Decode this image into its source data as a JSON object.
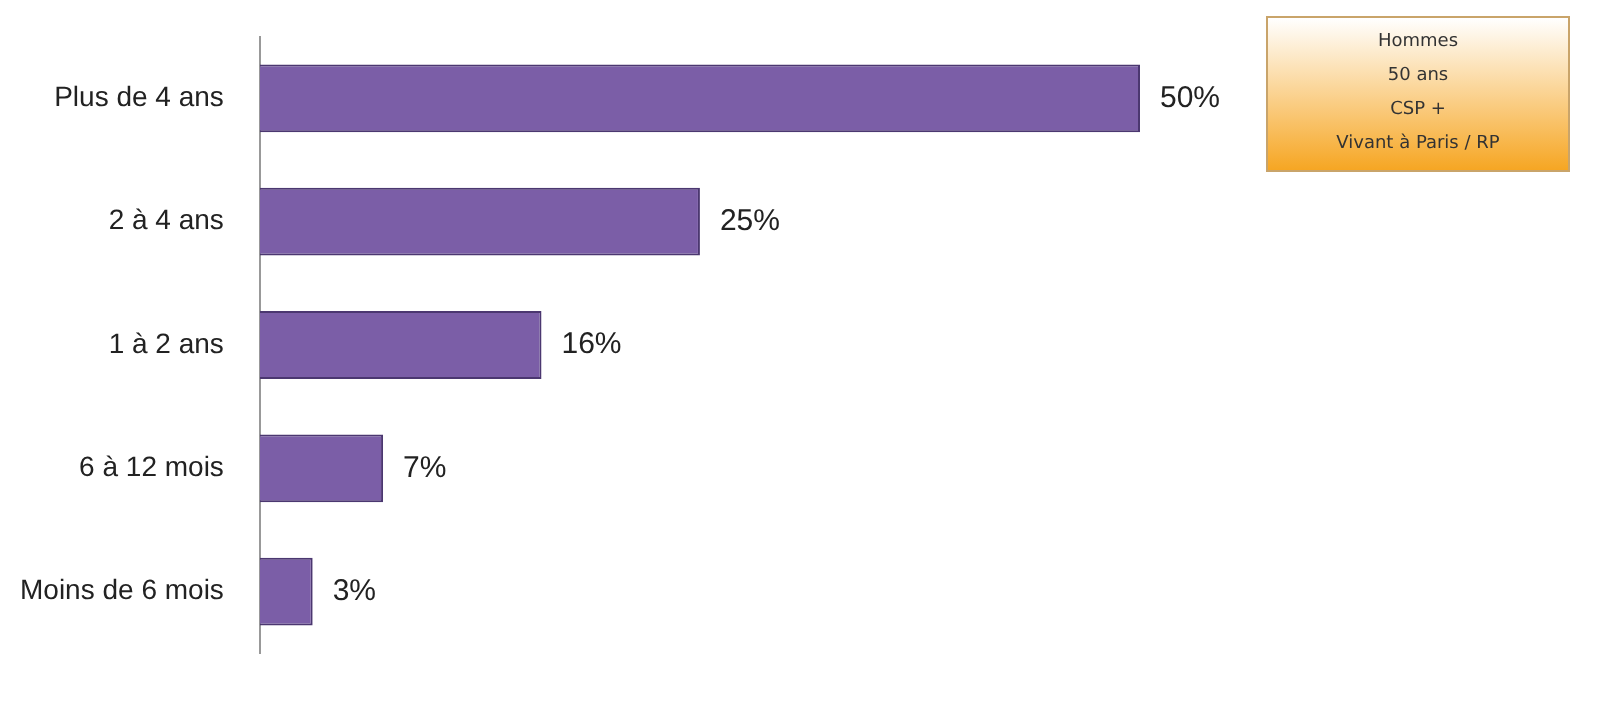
{
  "chart_data": {
    "type": "bar",
    "orientation": "horizontal",
    "categories": [
      "Plus de 4 ans",
      "2 à 4 ans",
      "1 à 2 ans",
      "6 à 12 mois",
      "Moins de 6 mois"
    ],
    "values": [
      50,
      25,
      16,
      7,
      3
    ],
    "value_labels": [
      "50%",
      "25%",
      "16%",
      "7%",
      "3%"
    ],
    "color": "#7b5ea7",
    "tick_labels": "y",
    "grid": false,
    "legend": false,
    "annotations": [
      "Hommes",
      "50 ans",
      "CSP +",
      "Vivant à Paris / RP"
    ]
  }
}
